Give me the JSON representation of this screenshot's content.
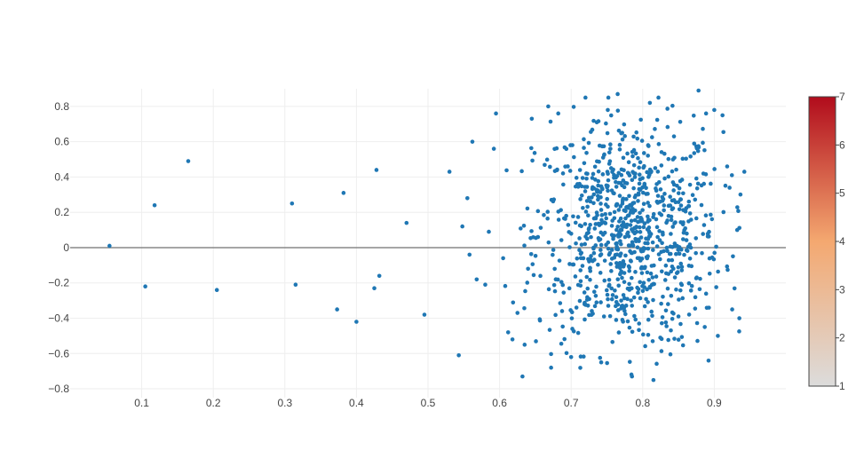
{
  "chart_data": {
    "type": "scatter",
    "title": "",
    "xlabel": "",
    "ylabel": "",
    "xlim": [
      0.0,
      1.0
    ],
    "ylim": [
      -0.85,
      0.9
    ],
    "x_ticks": [
      "0.1",
      "0.2",
      "0.3",
      "0.4",
      "0.5",
      "0.6",
      "0.7",
      "0.8",
      "0.9"
    ],
    "y_ticks": [
      "0.8",
      "0.6",
      "0.4",
      "0.2",
      "0",
      "−0.2",
      "−0.4",
      "−0.6",
      "−0.8"
    ],
    "grid": true,
    "zero_line": true,
    "marker_color": "#1f77b4",
    "colorbar": {
      "min": 1,
      "max": 7,
      "ticks": [
        "1",
        "2",
        "3",
        "4",
        "5",
        "6",
        "7"
      ],
      "color_low": "#dcdcdc",
      "color_mid": "#f4a870",
      "color_high": "#b10c1c"
    },
    "outliers": [
      [
        0.055,
        0.01
      ],
      [
        0.105,
        -0.22
      ],
      [
        0.118,
        0.24
      ],
      [
        0.165,
        0.49
      ],
      [
        0.205,
        -0.24
      ],
      [
        0.31,
        0.25
      ],
      [
        0.315,
        -0.21
      ],
      [
        0.373,
        -0.35
      ],
      [
        0.382,
        0.31
      ],
      [
        0.4,
        -0.42
      ],
      [
        0.425,
        -0.23
      ],
      [
        0.428,
        0.44
      ],
      [
        0.432,
        -0.16
      ],
      [
        0.47,
        0.14
      ],
      [
        0.495,
        -0.38
      ],
      [
        0.53,
        0.43
      ],
      [
        0.543,
        -0.61
      ],
      [
        0.548,
        0.12
      ],
      [
        0.555,
        0.28
      ],
      [
        0.558,
        -0.04
      ],
      [
        0.562,
        0.6
      ],
      [
        0.568,
        -0.18
      ],
      [
        0.58,
        -0.21
      ],
      [
        0.585,
        0.09
      ],
      [
        0.592,
        0.56
      ],
      [
        0.595,
        0.76
      ],
      [
        0.605,
        -0.06
      ],
      [
        0.612,
        -0.48
      ],
      [
        0.618,
        -0.52
      ],
      [
        0.625,
        -0.37
      ],
      [
        0.632,
        -0.73
      ],
      [
        0.635,
        -0.55
      ],
      [
        0.645,
        0.73
      ],
      [
        0.668,
        0.8
      ],
      [
        0.672,
        -0.68
      ],
      [
        0.682,
        0.76
      ],
      [
        0.7,
        -0.62
      ],
      [
        0.72,
        0.85
      ],
      [
        0.742,
        -0.65
      ],
      [
        0.752,
        0.85
      ],
      [
        0.765,
        0.87
      ],
      [
        0.785,
        -0.73
      ],
      [
        0.81,
        0.82
      ],
      [
        0.815,
        -0.75
      ],
      [
        0.822,
        0.85
      ],
      [
        0.878,
        0.89
      ],
      [
        0.892,
        -0.64
      ],
      [
        0.9,
        0.78
      ],
      [
        0.905,
        -0.5
      ],
      [
        0.918,
        0.46
      ],
      [
        0.925,
        -0.35
      ],
      [
        0.932,
        0.1
      ],
      [
        0.935,
        -0.4
      ],
      [
        0.942,
        0.43
      ]
    ],
    "cluster": {
      "count": 900,
      "x_range": [
        0.6,
        0.94
      ],
      "y_range": [
        -0.74,
        0.82
      ],
      "x_mean": 0.78,
      "x_sd": 0.065,
      "y_mean": 0.08,
      "y_sd": 0.33
    }
  }
}
